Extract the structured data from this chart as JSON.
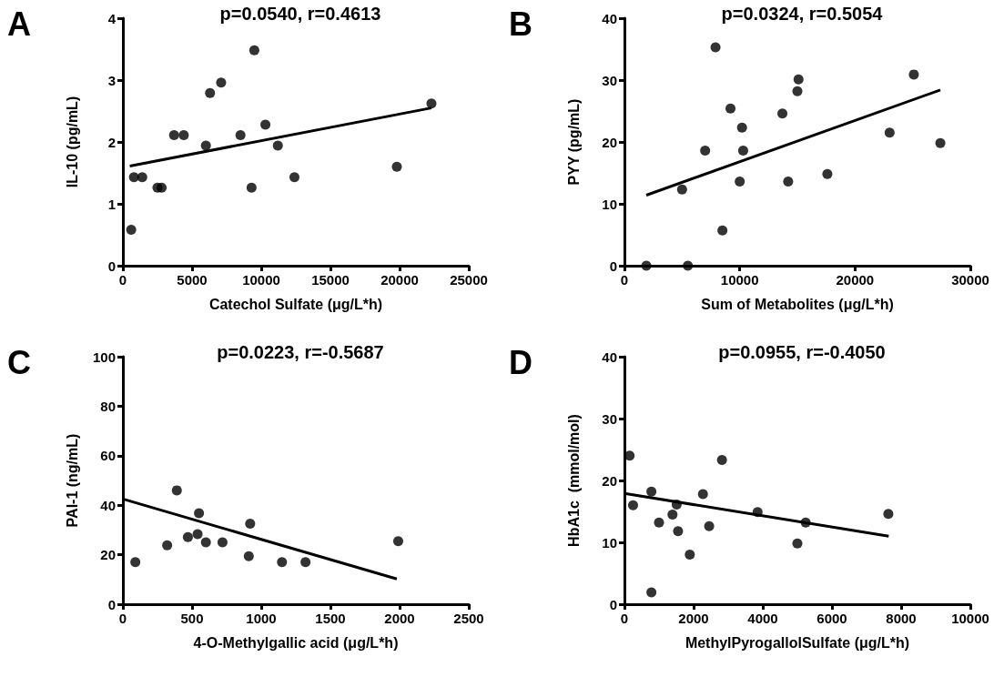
{
  "chart_data": [
    {
      "type": "scatter",
      "title": "p=0.0540, r=0.4613",
      "xlabel": "Catechol Sulfate (μg/L*h)",
      "ylabel": "IL-10 (pg/mL)",
      "annotations": [
        "A"
      ],
      "xlim": [
        0,
        25000
      ],
      "xticks": [
        0,
        5000,
        10000,
        15000,
        20000,
        25000
      ],
      "ylim": [
        0,
        4
      ],
      "yticks": [
        0,
        1,
        2,
        3,
        4
      ],
      "series": [
        {
          "color": "#000000",
          "marker": "circle",
          "x": [
            600,
            800,
            1400,
            2500,
            2800,
            3700,
            4400,
            6000,
            6300,
            7100,
            8500,
            9500,
            9300,
            10300,
            11200,
            12400,
            19800,
            22300
          ],
          "values": [
            0.58,
            1.43,
            1.43,
            1.26,
            1.26,
            2.11,
            2.11,
            1.94,
            2.79,
            2.96,
            2.11,
            3.48,
            1.26,
            2.28,
            1.94,
            1.43,
            1.6,
            2.62
          ]
        },
        {
          "type": "line",
          "color": "#000000",
          "marker": "none",
          "x": [
            500,
            22300
          ],
          "values": [
            1.61,
            2.55
          ]
        }
      ]
    },
    {
      "type": "scatter",
      "title": "p=0.0324, r=0.5054",
      "xlabel": "Sum of Metabolites (μg/L*h)",
      "ylabel": "PYY (pg/mL)",
      "annotations": [
        "B"
      ],
      "xlim": [
        0,
        30000
      ],
      "xticks": [
        0,
        10000,
        20000,
        30000
      ],
      "ylim": [
        0,
        40
      ],
      "yticks": [
        0,
        10,
        20,
        30,
        40
      ],
      "series": [
        {
          "color": "#000000",
          "marker": "circle",
          "x": [
            1900,
            5500,
            5000,
            7000,
            7900,
            8500,
            9200,
            10000,
            10200,
            10300,
            13700,
            14200,
            15000,
            15100,
            17600,
            23000,
            25100,
            27400
          ],
          "values": [
            0,
            0,
            12.3,
            18.6,
            35.3,
            5.7,
            25.4,
            13.6,
            22.3,
            18.6,
            24.6,
            13.6,
            28.2,
            30.1,
            14.8,
            21.5,
            30.9,
            19.8
          ]
        },
        {
          "type": "line",
          "color": "#000000",
          "marker": "none",
          "x": [
            1900,
            27400
          ],
          "values": [
            11.4,
            28.4
          ]
        }
      ]
    },
    {
      "type": "scatter",
      "title": "p=0.0223, r=-0.5687",
      "xlabel": "4-O-Methylgallic acid (μg/L*h)",
      "ylabel": "PAI-1 (ng/mL)",
      "annotations": [
        "C"
      ],
      "xlim": [
        0,
        2500
      ],
      "xticks": [
        0,
        500,
        1000,
        1500,
        2000,
        2500
      ],
      "ylim": [
        0,
        100
      ],
      "yticks": [
        0,
        20,
        40,
        60,
        80,
        100
      ],
      "series": [
        {
          "color": "#000000",
          "marker": "circle",
          "x": [
            90,
            320,
            390,
            470,
            540,
            550,
            600,
            720,
            910,
            920,
            1150,
            1320,
            1990
          ],
          "values": [
            17,
            23.8,
            46,
            27.1,
            28.3,
            36.8,
            25,
            25,
            19.4,
            32.5,
            17,
            17,
            25.5
          ]
        },
        {
          "type": "line",
          "color": "#000000",
          "marker": "none",
          "x": [
            0,
            1980
          ],
          "values": [
            42.5,
            10.2
          ]
        }
      ]
    },
    {
      "type": "scatter",
      "title": "p=0.0955, r=-0.4050",
      "xlabel": "MethylPyrogallolSulfate (μg/L*h)",
      "ylabel": "HbA1c  (mmol/mol)",
      "annotations": [
        "D"
      ],
      "xlim": [
        0,
        10000
      ],
      "xticks": [
        0,
        2000,
        4000,
        6000,
        8000,
        10000
      ],
      "ylim": [
        0,
        40
      ],
      "yticks": [
        0,
        10,
        20,
        30,
        40
      ],
      "series": [
        {
          "color": "#000000",
          "marker": "circle",
          "x": [
            150,
            250,
            780,
            780,
            1000,
            1390,
            1510,
            1550,
            1890,
            2270,
            2450,
            2820,
            3850,
            5000,
            5240,
            7630
          ],
          "values": [
            24,
            16,
            18.2,
            1.9,
            13.2,
            14.5,
            16.1,
            11.8,
            8,
            17.8,
            12.6,
            23.3,
            14.9,
            9.8,
            13.2,
            14.6
          ]
        },
        {
          "type": "line",
          "color": "#000000",
          "marker": "none",
          "x": [
            0,
            7640
          ],
          "values": [
            17.9,
            11
          ]
        }
      ]
    }
  ]
}
